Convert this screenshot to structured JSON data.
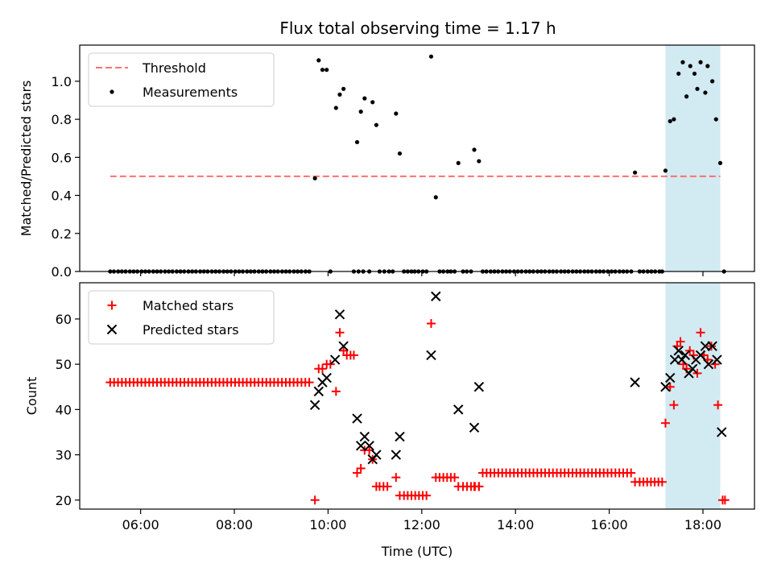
{
  "title": "Flux total observing time = 1.17 h",
  "colors": {
    "threshold": "#ff7070",
    "measurements": "#000000",
    "matched": "#ff0000",
    "predicted": "#000000",
    "highlight": "#add8e6"
  },
  "chart_data": [
    {
      "type": "scatter",
      "title": "Flux total observing time = 1.17 h",
      "xlabel": "",
      "ylabel": "Matched/Predicted stars",
      "xlim": [
        4.7,
        19.1
      ],
      "ylim": [
        0,
        1.19
      ],
      "yticks": [
        0.0,
        0.2,
        0.4,
        0.6,
        0.8,
        1.0
      ],
      "ytick_labels": [
        "0.0",
        "0.2",
        "0.4",
        "0.6",
        "0.8",
        "1.0"
      ],
      "xticks": [
        6,
        8,
        10,
        12,
        14,
        16,
        18
      ],
      "highlight_span": [
        17.2,
        18.37
      ],
      "legend": {
        "location": "upper-left",
        "entries": [
          "Threshold",
          "Measurements"
        ]
      },
      "threshold": {
        "name": "Threshold",
        "y": 0.5,
        "x_range": [
          5.35,
          18.37
        ]
      },
      "measurements": {
        "name": "Measurements",
        "points": [
          [
            9.72,
            0.49
          ],
          [
            9.8,
            1.11
          ],
          [
            9.88,
            1.06
          ],
          [
            9.97,
            1.06
          ],
          [
            10.17,
            0.86
          ],
          [
            10.25,
            0.93
          ],
          [
            10.33,
            0.96
          ],
          [
            10.62,
            0.68
          ],
          [
            10.7,
            0.84
          ],
          [
            10.78,
            0.91
          ],
          [
            10.95,
            0.89
          ],
          [
            11.03,
            0.77
          ],
          [
            11.45,
            0.83
          ],
          [
            11.53,
            0.62
          ],
          [
            12.2,
            1.13
          ],
          [
            12.3,
            0.39
          ],
          [
            12.78,
            0.57
          ],
          [
            13.12,
            0.64
          ],
          [
            13.22,
            0.58
          ],
          [
            16.55,
            0.52
          ],
          [
            17.2,
            0.53
          ],
          [
            17.3,
            0.79
          ],
          [
            17.38,
            0.8
          ],
          [
            17.48,
            1.04
          ],
          [
            17.57,
            1.1
          ],
          [
            17.65,
            0.92
          ],
          [
            17.73,
            1.08
          ],
          [
            17.82,
            1.04
          ],
          [
            17.88,
            0.96
          ],
          [
            17.95,
            1.1
          ],
          [
            18.05,
            0.94
          ],
          [
            18.1,
            1.08
          ],
          [
            18.2,
            1.0
          ],
          [
            18.28,
            0.8
          ],
          [
            18.37,
            0.57
          ]
        ],
        "zero_points_x": [
          5.35,
          5.43,
          5.52,
          5.6,
          5.68,
          5.77,
          5.85,
          5.93,
          6.02,
          6.1,
          6.18,
          6.27,
          6.35,
          6.43,
          6.52,
          6.6,
          6.68,
          6.77,
          6.85,
          6.93,
          7.02,
          7.1,
          7.18,
          7.27,
          7.35,
          7.43,
          7.52,
          7.6,
          7.68,
          7.77,
          7.85,
          7.93,
          8.02,
          8.1,
          8.18,
          8.27,
          8.35,
          8.43,
          8.52,
          8.6,
          8.68,
          8.77,
          8.85,
          8.93,
          9.02,
          9.1,
          9.18,
          9.27,
          9.35,
          9.43,
          9.52,
          9.6,
          10.05,
          10.55,
          10.65,
          10.75,
          10.88,
          11.1,
          11.2,
          11.3,
          11.38,
          11.62,
          11.7,
          11.78,
          11.85,
          11.93,
          12.02,
          12.1,
          12.38,
          12.46,
          12.55,
          12.62,
          12.7,
          12.88,
          12.96,
          13.05,
          13.3,
          13.38,
          13.47,
          13.55,
          13.63,
          13.72,
          13.8,
          13.88,
          13.97,
          14.05,
          14.13,
          14.22,
          14.3,
          14.38,
          14.47,
          14.55,
          14.63,
          14.72,
          14.8,
          14.88,
          14.97,
          15.05,
          15.13,
          15.22,
          15.3,
          15.38,
          15.47,
          15.55,
          15.63,
          15.72,
          15.8,
          15.88,
          15.97,
          16.05,
          16.13,
          16.22,
          16.3,
          16.38,
          16.47,
          16.65,
          16.73,
          16.82,
          16.9,
          16.98,
          17.07,
          17.13,
          18.45
        ]
      }
    },
    {
      "type": "scatter",
      "title": "",
      "xlabel": "Time (UTC)",
      "ylabel": "Count",
      "xlim": [
        4.7,
        19.1
      ],
      "ylim": [
        18,
        68
      ],
      "yticks": [
        20,
        30,
        40,
        50,
        60
      ],
      "ytick_labels": [
        "20",
        "30",
        "40",
        "50",
        "60"
      ],
      "xticks": [
        6,
        8,
        10,
        12,
        14,
        16,
        18
      ],
      "xtick_labels": [
        "06:00",
        "08:00",
        "10:00",
        "12:00",
        "14:00",
        "16:00",
        "18:00"
      ],
      "highlight_span": [
        17.2,
        18.37
      ],
      "legend": {
        "location": "upper-left",
        "entries": [
          "Matched stars",
          "Predicted stars"
        ]
      },
      "matched": {
        "name": "Matched stars",
        "baseline_runs": [
          {
            "x_start": 5.35,
            "x_end": 9.6,
            "step": 0.0833,
            "y": 46
          },
          {
            "x_start": 11.1,
            "x_end": 11.3,
            "step": 0.083,
            "y": 23
          },
          {
            "x_start": 11.62,
            "x_end": 12.1,
            "step": 0.08,
            "y": 21
          },
          {
            "x_start": 12.38,
            "x_end": 12.7,
            "step": 0.08,
            "y": 25
          },
          {
            "x_start": 12.88,
            "x_end": 13.22,
            "step": 0.085,
            "y": 23
          },
          {
            "x_start": 13.3,
            "x_end": 16.47,
            "step": 0.0833,
            "y": 26
          },
          {
            "x_start": 16.65,
            "x_end": 17.13,
            "step": 0.08,
            "y": 24
          }
        ],
        "points": [
          [
            9.72,
            20
          ],
          [
            9.8,
            49
          ],
          [
            9.88,
            49
          ],
          [
            9.97,
            50
          ],
          [
            10.05,
            50
          ],
          [
            10.17,
            44
          ],
          [
            10.25,
            57
          ],
          [
            10.33,
            53
          ],
          [
            10.4,
            52
          ],
          [
            10.48,
            52
          ],
          [
            10.55,
            52
          ],
          [
            10.62,
            26
          ],
          [
            10.7,
            27
          ],
          [
            10.78,
            31
          ],
          [
            10.88,
            31
          ],
          [
            10.95,
            29
          ],
          [
            11.03,
            23
          ],
          [
            11.45,
            25
          ],
          [
            11.53,
            21
          ],
          [
            12.2,
            59
          ],
          [
            12.3,
            25
          ],
          [
            12.78,
            23
          ],
          [
            13.12,
            23
          ],
          [
            13.22,
            23
          ],
          [
            16.55,
            24
          ],
          [
            17.2,
            37
          ],
          [
            17.3,
            45
          ],
          [
            17.38,
            41
          ],
          [
            17.45,
            54
          ],
          [
            17.52,
            55
          ],
          [
            17.58,
            50
          ],
          [
            17.65,
            49
          ],
          [
            17.72,
            53
          ],
          [
            17.8,
            52
          ],
          [
            17.88,
            48
          ],
          [
            17.95,
            57
          ],
          [
            18.02,
            52
          ],
          [
            18.1,
            51
          ],
          [
            18.18,
            54
          ],
          [
            18.26,
            50
          ],
          [
            18.32,
            41
          ],
          [
            18.42,
            20
          ],
          [
            18.47,
            20
          ]
        ]
      },
      "predicted": {
        "name": "Predicted stars",
        "points": [
          [
            9.72,
            41
          ],
          [
            9.8,
            44
          ],
          [
            9.88,
            46
          ],
          [
            9.97,
            47
          ],
          [
            10.15,
            51
          ],
          [
            10.25,
            61
          ],
          [
            10.33,
            54
          ],
          [
            10.62,
            38
          ],
          [
            10.7,
            32
          ],
          [
            10.78,
            34
          ],
          [
            10.88,
            32
          ],
          [
            10.95,
            29
          ],
          [
            11.03,
            30
          ],
          [
            11.45,
            30
          ],
          [
            11.53,
            34
          ],
          [
            12.2,
            52
          ],
          [
            12.3,
            65
          ],
          [
            12.78,
            40
          ],
          [
            13.12,
            36
          ],
          [
            13.22,
            45
          ],
          [
            16.55,
            46
          ],
          [
            17.2,
            45
          ],
          [
            17.3,
            47
          ],
          [
            17.4,
            51
          ],
          [
            17.48,
            53
          ],
          [
            17.55,
            51
          ],
          [
            17.62,
            52
          ],
          [
            17.7,
            48
          ],
          [
            17.78,
            49
          ],
          [
            17.85,
            51
          ],
          [
            17.95,
            52
          ],
          [
            18.05,
            54
          ],
          [
            18.12,
            50
          ],
          [
            18.2,
            54
          ],
          [
            18.3,
            51
          ],
          [
            18.4,
            35
          ]
        ]
      }
    }
  ]
}
